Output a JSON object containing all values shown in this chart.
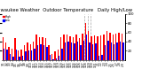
{
  "title": "Milwaukee Weather  Outdoor Temperature   Daily High/Low",
  "title_fontsize": 3.8,
  "background_color": "#ffffff",
  "high_color": "#ff0000",
  "low_color": "#0000ff",
  "ylim": [
    0,
    100
  ],
  "yticks": [
    20,
    40,
    60,
    80,
    100
  ],
  "ytick_labels": [
    "20",
    "40",
    "60",
    "80",
    "100"
  ],
  "dates": [
    "1/1",
    "1/2",
    "1/3",
    "1/4",
    "1/5",
    "1/6",
    "1/7",
    "1/8",
    "1/9",
    "1/10",
    "1/11",
    "1/12",
    "1/13",
    "1/14",
    "1/15",
    "1/16",
    "1/17",
    "1/18",
    "1/19",
    "1/20",
    "1/21",
    "1/22",
    "1/23",
    "1/24",
    "1/25",
    "1/26",
    "1/27",
    "1/28",
    "1/29",
    "1/30",
    "1/31",
    "2/1",
    "2/2",
    "2/3",
    "2/4",
    "2/5",
    "2/6",
    "2/7",
    "2/8",
    "2/9"
  ],
  "highs": [
    50,
    38,
    28,
    25,
    48,
    20,
    22,
    32,
    38,
    35,
    40,
    55,
    50,
    50,
    48,
    32,
    14,
    18,
    22,
    50,
    55,
    55,
    52,
    50,
    55,
    48,
    58,
    80,
    62,
    52,
    54,
    52,
    54,
    55,
    62,
    60,
    56,
    58,
    60,
    58
  ],
  "lows": [
    25,
    22,
    14,
    8,
    22,
    8,
    10,
    18,
    20,
    20,
    24,
    32,
    35,
    32,
    28,
    12,
    2,
    4,
    10,
    25,
    38,
    40,
    38,
    36,
    40,
    32,
    42,
    55,
    38,
    34,
    36,
    10,
    12,
    32,
    42,
    38,
    34,
    38,
    40,
    38
  ],
  "dashed_vline_positions": [
    26.5,
    27.5,
    28.5
  ],
  "legend_labels": [
    "High",
    "Low"
  ],
  "xtick_fontsize": 2.2,
  "ytick_fontsize": 2.8,
  "bar_width": 0.42
}
